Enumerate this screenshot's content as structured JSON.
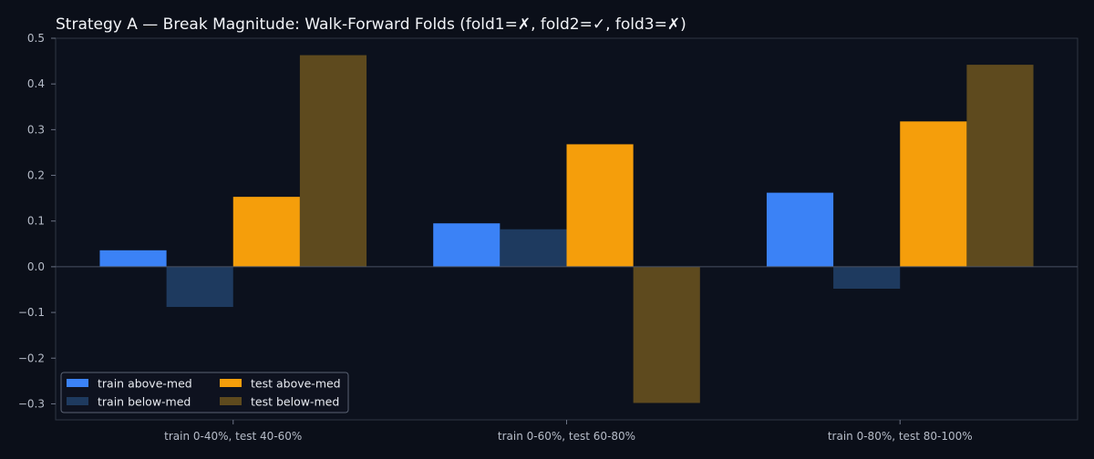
{
  "chart_data": {
    "type": "bar",
    "title": "Strategy A — Break Magnitude: Walk-Forward Folds (fold1=✗, fold2=✓, fold3=✗)",
    "xlabel": "",
    "ylabel": "",
    "categories": [
      "train 0-40%, test 40-60%",
      "train 0-60%, test 60-80%",
      "train 0-80%, test 80-100%"
    ],
    "ylim": [
      -0.335,
      0.5
    ],
    "yticks": [
      -0.3,
      -0.2,
      -0.1,
      0.0,
      0.1,
      0.2,
      0.3,
      0.4,
      0.5
    ],
    "ytick_labels": [
      "−0.3",
      "−0.2",
      "−0.1",
      "0.0",
      "0.1",
      "0.2",
      "0.3",
      "0.4",
      "0.5"
    ],
    "grid": false,
    "legend_position": "bottom-left",
    "series": [
      {
        "name": "train above-med",
        "color": "#3b82f6",
        "values": [
          0.036,
          0.095,
          0.162
        ]
      },
      {
        "name": "train below-med",
        "color": "#1e3a5f",
        "values": [
          -0.088,
          0.082,
          -0.048
        ]
      },
      {
        "name": "test above-med",
        "color": "#f59e0b",
        "values": [
          0.153,
          0.268,
          0.318
        ]
      },
      {
        "name": "test below-med",
        "color": "#5e4a1e",
        "values": [
          0.463,
          -0.298,
          0.442
        ]
      }
    ]
  }
}
